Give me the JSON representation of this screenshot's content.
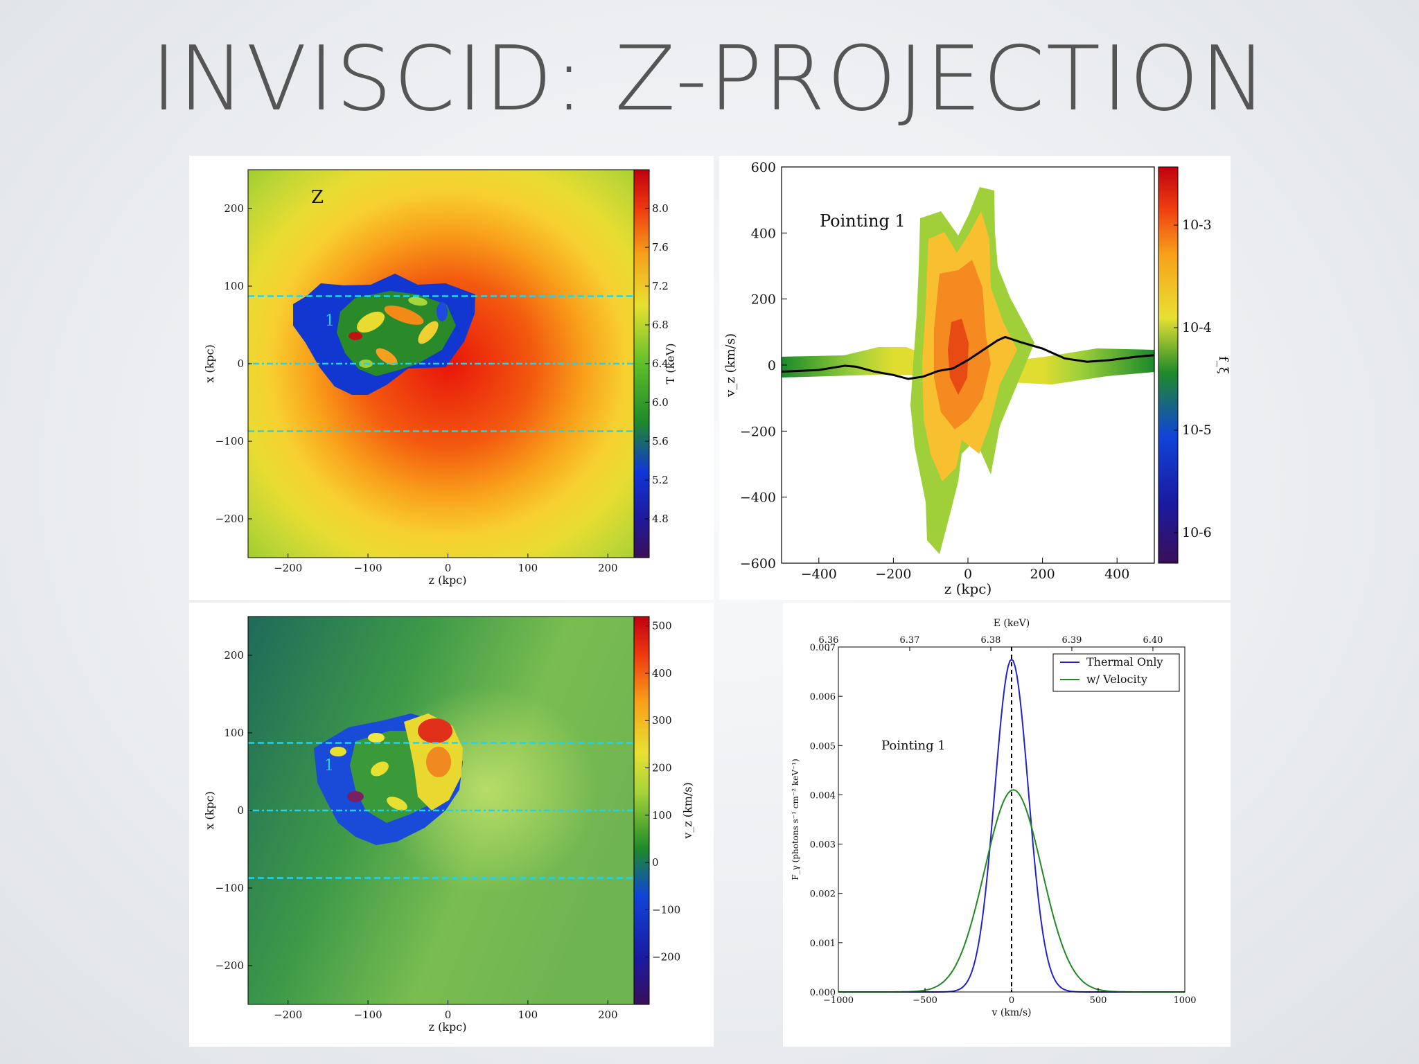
{
  "title": "INVISCID: Z-PROJECTION",
  "colors": {
    "background": "#e9ebee",
    "title": "#555555",
    "cyan_line": "#22d3ee",
    "thermal": "#2222cc",
    "velocity": "#228822"
  },
  "chart_data": [
    {
      "id": "temperature-map",
      "type": "heatmap",
      "xlabel": "z (kpc)",
      "ylabel": "x (kpc)",
      "xlim": [
        -250,
        250
      ],
      "ylim": [
        -250,
        250
      ],
      "xticks": [
        "−200",
        "−100",
        "0",
        "100",
        "200"
      ],
      "yticks": [
        "200",
        "100",
        "0",
        "−100",
        "−200"
      ],
      "colorbar": {
        "label": "T (keV)",
        "range": [
          4.4,
          8.4
        ],
        "ticks": [
          "8.0",
          "7.6",
          "7.2",
          "6.8",
          "6.4",
          "6.0",
          "5.6",
          "5.2",
          "4.8"
        ]
      },
      "annotations": [
        "Z",
        "1"
      ],
      "pointing_lines_kpc": [
        87,
        0,
        -87
      ]
    },
    {
      "id": "velocity-phase-plot",
      "type": "heatmap",
      "xlabel": "z (kpc)",
      "ylabel": "v_z (km/s)",
      "xlim": [
        -500,
        500
      ],
      "ylim": [
        -600,
        600
      ],
      "xticks": [
        "−400",
        "−200",
        "0",
        "200",
        "400"
      ],
      "yticks": [
        "600",
        "400",
        "200",
        "0",
        "−200",
        "−400",
        "−600"
      ],
      "colorbar": {
        "label": "f_ξ",
        "scale": "log",
        "ticks": [
          "10-3",
          "10-4",
          "10-5",
          "10-6"
        ]
      },
      "annotation": "Pointing 1",
      "mean_velocity": {
        "x": [
          -500,
          -400,
          -330,
          -300,
          -250,
          -200,
          -160,
          -120,
          -80,
          -40,
          0,
          40,
          80,
          100,
          140,
          200,
          260,
          320,
          380,
          450,
          500
        ],
        "y": [
          -20,
          -15,
          -2,
          -5,
          -20,
          -30,
          -42,
          -35,
          -18,
          -10,
          15,
          45,
          75,
          85,
          70,
          50,
          20,
          10,
          15,
          25,
          30
        ]
      }
    },
    {
      "id": "velocity-map",
      "type": "heatmap",
      "xlabel": "z (kpc)",
      "ylabel": "x (kpc)",
      "xlim": [
        -250,
        250
      ],
      "ylim": [
        -250,
        250
      ],
      "xticks": [
        "−200",
        "−100",
        "0",
        "100",
        "200"
      ],
      "yticks": [
        "200",
        "100",
        "0",
        "−100",
        "−200"
      ],
      "colorbar": {
        "label": "v_z (km/s)",
        "range": [
          -300,
          520
        ],
        "ticks": [
          "500",
          "400",
          "300",
          "200",
          "100",
          "0",
          "−100",
          "−200"
        ]
      },
      "annotations": [
        "1"
      ],
      "pointing_lines_kpc": [
        87,
        0,
        -87
      ]
    },
    {
      "id": "spectrum-plot",
      "type": "line",
      "xlabel": "v (km/s)",
      "ylabel": "F_γ (photons s⁻¹ cm⁻² keV⁻¹)",
      "top_xlabel": "E (keV)",
      "xlim": [
        -1000,
        1000
      ],
      "ylim": [
        0,
        0.007
      ],
      "xticks": [
        "−1000",
        "−500",
        "0",
        "500",
        "1000"
      ],
      "yticks": [
        "0.007",
        "0.006",
        "0.005",
        "0.004",
        "0.003",
        "0.002",
        "0.001",
        "0.000"
      ],
      "top_ticks": [
        "6.36",
        "6.37",
        "6.38",
        "6.39",
        "6.40"
      ],
      "annotation": "Pointing 1",
      "series": [
        {
          "name": "Thermal Only",
          "peak": 0.00675,
          "center_kms": 0,
          "sigma_kms": 97
        },
        {
          "name": "w/ Velocity",
          "peak": 0.0041,
          "center_kms": 10,
          "sigma_kms": 165
        }
      ]
    }
  ]
}
